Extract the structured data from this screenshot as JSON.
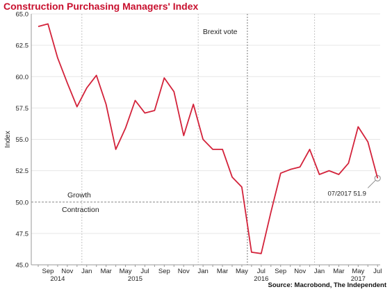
{
  "chart_data": {
    "type": "line",
    "title": "Construction Purchasing Managers' Index",
    "ylabel": "Index",
    "xlabel": "",
    "ylim": [
      45.0,
      65.0
    ],
    "yticks": [
      "45.0",
      "47.5",
      "50.0",
      "52.5",
      "55.0",
      "57.5",
      "60.0",
      "62.5",
      "65.0"
    ],
    "x": [
      "2014-08",
      "2014-09",
      "2014-10",
      "2014-11",
      "2014-12",
      "2015-01",
      "2015-02",
      "2015-03",
      "2015-04",
      "2015-05",
      "2015-06",
      "2015-07",
      "2015-08",
      "2015-09",
      "2015-10",
      "2015-11",
      "2015-12",
      "2016-01",
      "2016-02",
      "2016-03",
      "2016-04",
      "2016-05",
      "2016-06",
      "2016-07",
      "2016-08",
      "2016-09",
      "2016-10",
      "2016-11",
      "2016-12",
      "2017-01",
      "2017-02",
      "2017-03",
      "2017-04",
      "2017-05",
      "2017-06",
      "2017-07"
    ],
    "series": [
      {
        "values": [
          64.0,
          64.2,
          61.5,
          59.5,
          57.6,
          59.1,
          60.1,
          57.8,
          54.2,
          55.9,
          58.1,
          57.1,
          57.3,
          59.9,
          58.8,
          55.3,
          57.8,
          55.0,
          54.2,
          54.2,
          52.0,
          51.2,
          46.0,
          45.9,
          49.2,
          52.3,
          52.6,
          52.8,
          54.2,
          52.2,
          52.5,
          52.2,
          53.1,
          56.0,
          54.8,
          51.9
        ]
      }
    ],
    "xtick_labels": [
      {
        "label": "Sep",
        "x": "2014-09"
      },
      {
        "label": "Nov",
        "x": "2014-11"
      },
      {
        "label": "Jan",
        "x": "2015-01"
      },
      {
        "label": "Mar",
        "x": "2015-03"
      },
      {
        "label": "May",
        "x": "2015-05"
      },
      {
        "label": "Jul",
        "x": "2015-07"
      },
      {
        "label": "Sep",
        "x": "2015-09"
      },
      {
        "label": "Nov",
        "x": "2015-11"
      },
      {
        "label": "Jan",
        "x": "2016-01"
      },
      {
        "label": "Mar",
        "x": "2016-03"
      },
      {
        "label": "May",
        "x": "2016-05"
      },
      {
        "label": "Jul",
        "x": "2016-07"
      },
      {
        "label": "Sep",
        "x": "2016-09"
      },
      {
        "label": "Nov",
        "x": "2016-11"
      },
      {
        "label": "Jan",
        "x": "2017-01"
      },
      {
        "label": "Mar",
        "x": "2017-03"
      },
      {
        "label": "May",
        "x": "2017-05"
      },
      {
        "label": "Jul",
        "x": "2017-07"
      }
    ],
    "year_labels": [
      {
        "label": "2014",
        "x": "2014-10"
      },
      {
        "label": "2015",
        "x": "2015-06"
      },
      {
        "label": "2016",
        "x": "2016-07"
      },
      {
        "label": "2017",
        "x": "2017-05"
      }
    ],
    "year_dividers": [
      "2014-12",
      "2015-12",
      "2016-12"
    ],
    "reference_line": {
      "y": 50.0,
      "label_above": "Growth",
      "label_below": "Contraction"
    },
    "event_marker": {
      "x": "2016-06",
      "label": "Brexit vote"
    },
    "point_annotation": {
      "x": "2017-07",
      "y": 51.9,
      "label": "07/2017 51.9"
    },
    "grid": true,
    "line_color": "#d3223a",
    "title_color": "#c8102e"
  },
  "source": "Source: Macrobond, The Independent"
}
